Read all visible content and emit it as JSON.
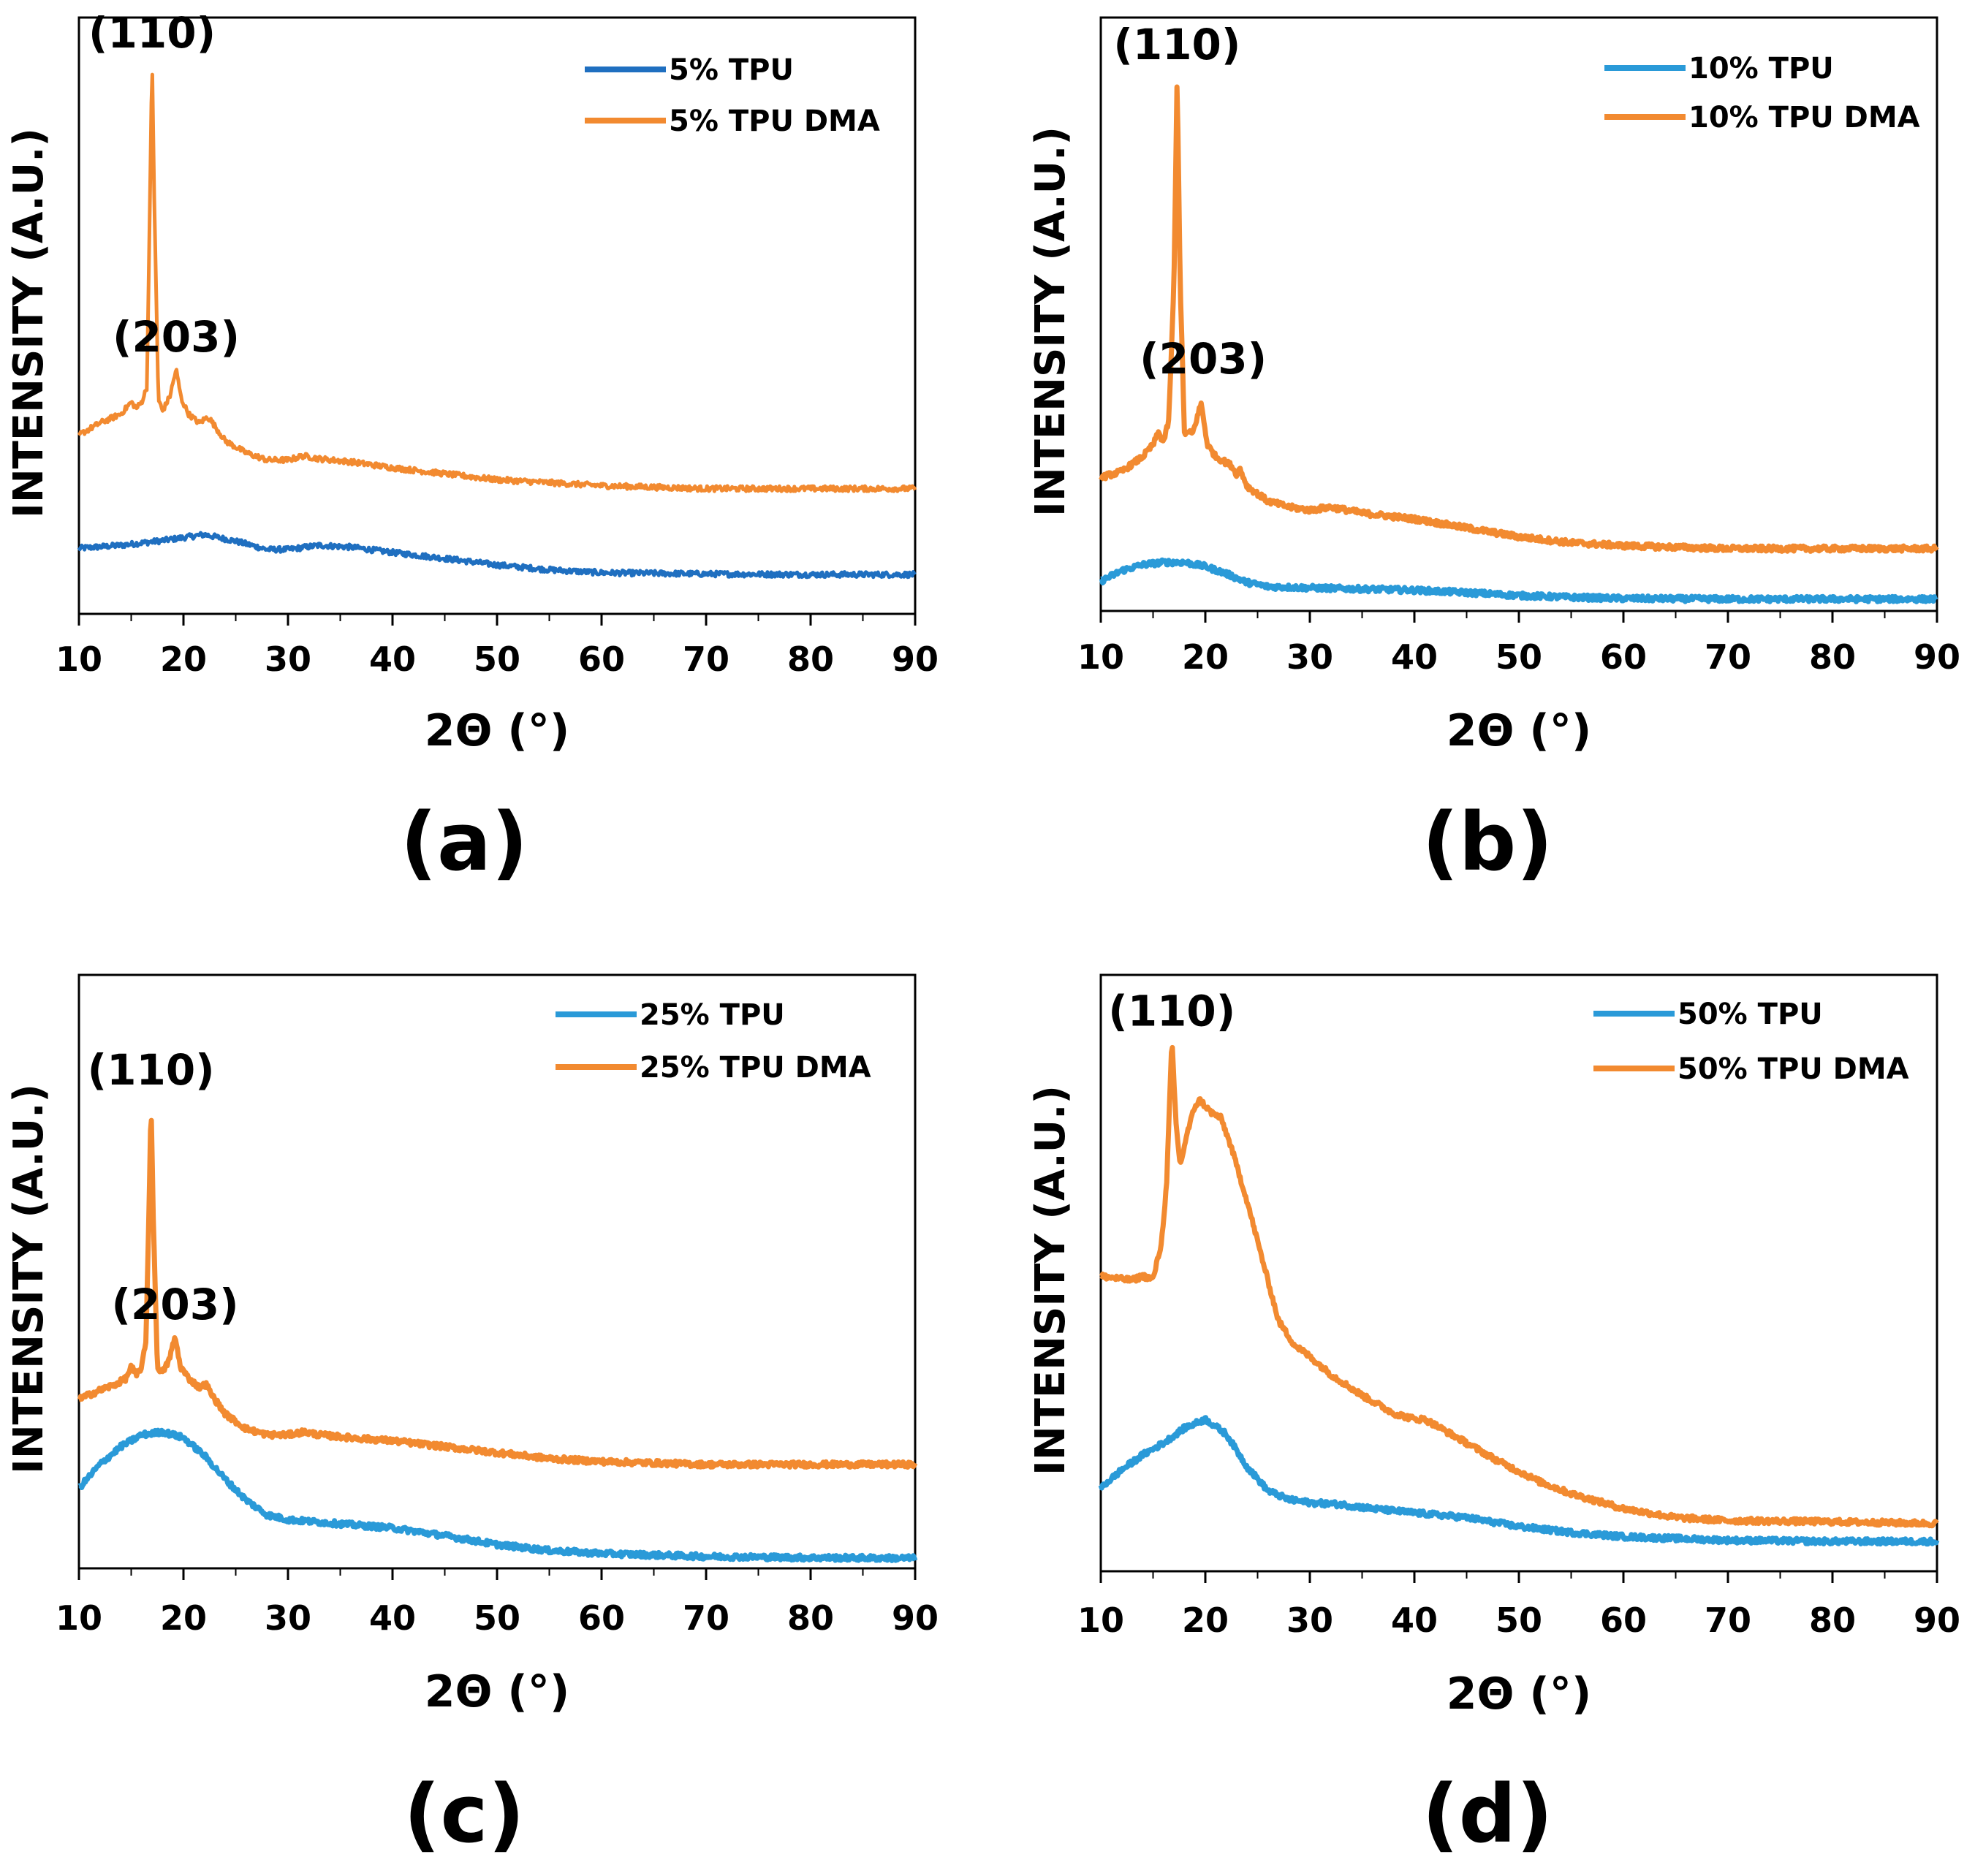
{
  "colors": {
    "blue_dark": "#1f6fc0",
    "blue_light": "#2a9ad8",
    "orange": "#f28a30",
    "axis": "#000000"
  },
  "chart_data": [
    {
      "type": "line",
      "panel_label": "(a)",
      "xlabel": "2Θ (°)",
      "ylabel": "INTENSITY (A.U.)",
      "xlim": [
        10,
        90
      ],
      "ylim": [
        0,
        100
      ],
      "x_ticks": [
        "10",
        "20",
        "30",
        "40",
        "50",
        "60",
        "70",
        "80",
        "90"
      ],
      "legend_position": "top-right",
      "series": [
        {
          "name": "5% TPU",
          "color_key": "blue_dark",
          "points": [
            [
              10,
              11
            ],
            [
              14,
              11.5
            ],
            [
              18,
              12.3
            ],
            [
              22,
              13.3
            ],
            [
              25,
              12.2
            ],
            [
              28,
              10.8
            ],
            [
              30,
              10.8
            ],
            [
              33,
              11.5
            ],
            [
              36,
              11.2
            ],
            [
              40,
              10.3
            ],
            [
              45,
              9.3
            ],
            [
              50,
              8.2
            ],
            [
              55,
              7.4
            ],
            [
              60,
              6.9
            ],
            [
              70,
              6.7
            ],
            [
              80,
              6.6
            ],
            [
              90,
              6.6
            ]
          ]
        },
        {
          "name": "5% TPU DMA",
          "color_key": "orange",
          "points": [
            [
              10,
              30
            ],
            [
              12,
              32
            ],
            [
              14,
              33.5
            ],
            [
              15,
              35.5
            ],
            [
              15.5,
              34.5
            ],
            [
              16,
              35.5
            ],
            [
              16.5,
              38
            ],
            [
              16.8,
              70
            ],
            [
              17,
              93
            ],
            [
              17.2,
              70
            ],
            [
              17.6,
              36
            ],
            [
              18,
              34
            ],
            [
              18.7,
              36.5
            ],
            [
              19.3,
              41
            ],
            [
              19.8,
              36
            ],
            [
              20.5,
              33.5
            ],
            [
              21.5,
              32
            ],
            [
              22.3,
              33
            ],
            [
              22.6,
              32.5
            ],
            [
              24,
              29
            ],
            [
              26,
              27
            ],
            [
              28,
              25.8
            ],
            [
              30,
              25.8
            ],
            [
              31.5,
              26.5
            ],
            [
              33,
              26
            ],
            [
              36,
              25.5
            ],
            [
              40,
              24.5
            ],
            [
              45,
              23.5
            ],
            [
              50,
              22.5
            ],
            [
              55,
              22
            ],
            [
              60,
              21.5
            ],
            [
              70,
              21
            ],
            [
              80,
              21
            ],
            [
              90,
              21
            ]
          ]
        }
      ],
      "annotations": [
        {
          "text": "(110)",
          "x": 17,
          "y": 95
        },
        {
          "text": "(203)",
          "x": 19.3,
          "y": 44
        }
      ]
    },
    {
      "type": "line",
      "panel_label": "(b)",
      "xlabel": "2Θ (°)",
      "ylabel": "INTENSITY (A.U.)",
      "xlim": [
        10,
        90
      ],
      "ylim": [
        0,
        100
      ],
      "x_ticks": [
        "10",
        "20",
        "30",
        "40",
        "50",
        "60",
        "70",
        "80",
        "90"
      ],
      "legend_position": "top-right",
      "series": [
        {
          "name": "10% TPU",
          "color_key": "blue_light",
          "points": [
            [
              10,
              5
            ],
            [
              12,
              6.8
            ],
            [
              14,
              7.8
            ],
            [
              16,
              8.2
            ],
            [
              18,
              8.2
            ],
            [
              20,
              7.5
            ],
            [
              22,
              6.3
            ],
            [
              24,
              4.8
            ],
            [
              26,
              4.1
            ],
            [
              30,
              3.9
            ],
            [
              35,
              3.7
            ],
            [
              40,
              3.5
            ],
            [
              45,
              3.1
            ],
            [
              50,
              2.6
            ],
            [
              55,
              2.3
            ],
            [
              60,
              2.1
            ],
            [
              70,
              2
            ],
            [
              80,
              2
            ],
            [
              90,
              2
            ]
          ]
        },
        {
          "name": "10% TPU DMA",
          "color_key": "orange",
          "points": [
            [
              10,
              22.5
            ],
            [
              12,
              23.5
            ],
            [
              14,
              26
            ],
            [
              15,
              28
            ],
            [
              15.5,
              30
            ],
            [
              16,
              28.5
            ],
            [
              16.5,
              32
            ],
            [
              17,
              55
            ],
            [
              17.3,
              90
            ],
            [
              17.6,
              55
            ],
            [
              18,
              30
            ],
            [
              18.8,
              30
            ],
            [
              19.6,
              35
            ],
            [
              20.2,
              28
            ],
            [
              21,
              26
            ],
            [
              22,
              25
            ],
            [
              22.5,
              24.5
            ],
            [
              23,
              23
            ],
            [
              23.3,
              24
            ],
            [
              24,
              21
            ],
            [
              26,
              18.5
            ],
            [
              28,
              17.5
            ],
            [
              30,
              17
            ],
            [
              32,
              17.5
            ],
            [
              35,
              16.5
            ],
            [
              40,
              15.5
            ],
            [
              45,
              14
            ],
            [
              50,
              12.5
            ],
            [
              55,
              11.5
            ],
            [
              60,
              11
            ],
            [
              70,
              10.5
            ],
            [
              80,
              10.5
            ],
            [
              90,
              10.5
            ]
          ]
        }
      ],
      "annotations": [
        {
          "text": "(110)",
          "x": 17.3,
          "y": 93
        },
        {
          "text": "(203)",
          "x": 19.8,
          "y": 40
        }
      ]
    },
    {
      "type": "line",
      "panel_label": "(c)",
      "xlabel": "2Θ (°)",
      "ylabel": "INTENSITY (A.U.)",
      "xlim": [
        10,
        90
      ],
      "ylim": [
        0,
        100
      ],
      "x_ticks": [
        "10",
        "20",
        "30",
        "40",
        "50",
        "60",
        "70",
        "80",
        "90"
      ],
      "legend_position": "top-right",
      "series": [
        {
          "name": "25% TPU",
          "color_key": "blue_light",
          "points": [
            [
              10,
              13.5
            ],
            [
              12,
              17.5
            ],
            [
              14,
              20.5
            ],
            [
              16,
              22.5
            ],
            [
              18,
              23
            ],
            [
              20,
              22
            ],
            [
              22,
              19
            ],
            [
              24,
              15
            ],
            [
              26,
              11.5
            ],
            [
              28,
              9
            ],
            [
              30,
              8.2
            ],
            [
              35,
              7.5
            ],
            [
              40,
              6.8
            ],
            [
              45,
              5.5
            ],
            [
              50,
              4
            ],
            [
              55,
              3
            ],
            [
              60,
              2.5
            ],
            [
              70,
              2
            ],
            [
              80,
              1.8
            ],
            [
              90,
              1.7
            ]
          ]
        },
        {
          "name": "25% TPU DMA",
          "color_key": "orange",
          "points": [
            [
              10,
              28.5
            ],
            [
              12,
              30
            ],
            [
              13.5,
              31
            ],
            [
              14.5,
              32
            ],
            [
              15,
              34
            ],
            [
              15.5,
              32.5
            ],
            [
              16,
              34
            ],
            [
              16.4,
              38
            ],
            [
              16.7,
              60
            ],
            [
              16.9,
              79
            ],
            [
              17.1,
              60
            ],
            [
              17.5,
              34
            ],
            [
              18,
              33
            ],
            [
              18.6,
              35
            ],
            [
              19.2,
              39
            ],
            [
              19.7,
              34
            ],
            [
              20.5,
              32
            ],
            [
              21.5,
              30.5
            ],
            [
              22.2,
              31
            ],
            [
              22.6,
              29.5
            ],
            [
              24,
              26
            ],
            [
              26,
              23.5
            ],
            [
              28,
              22.5
            ],
            [
              30,
              22.5
            ],
            [
              31.5,
              23
            ],
            [
              33,
              22.5
            ],
            [
              36,
              22
            ],
            [
              40,
              21.5
            ],
            [
              45,
              20.5
            ],
            [
              50,
              19.5
            ],
            [
              55,
              18.5
            ],
            [
              60,
              18
            ],
            [
              70,
              17.5
            ],
            [
              80,
              17.5
            ],
            [
              90,
              17.5
            ]
          ]
        }
      ],
      "annotations": [
        {
          "text": "(110)",
          "x": 16.9,
          "y": 81.5
        },
        {
          "text": "(203)",
          "x": 19.2,
          "y": 42
        }
      ]
    },
    {
      "type": "line",
      "panel_label": "(d)",
      "xlabel": "2Θ (°)",
      "ylabel": "INTENSITY (A.U.)",
      "xlim": [
        10,
        90
      ],
      "ylim": [
        0,
        100
      ],
      "x_ticks": [
        "10",
        "20",
        "30",
        "40",
        "50",
        "60",
        "70",
        "80",
        "90"
      ],
      "legend_position": "top-right",
      "series": [
        {
          "name": "50% TPU",
          "color_key": "blue_light",
          "points": [
            [
              10,
              14
            ],
            [
              12,
              17
            ],
            [
              14,
              19.5
            ],
            [
              16,
              21.5
            ],
            [
              18,
              24
            ],
            [
              20,
              25.5
            ],
            [
              22,
              23
            ],
            [
              24,
              17.5
            ],
            [
              26,
              13.5
            ],
            [
              28,
              12
            ],
            [
              30,
              11.5
            ],
            [
              33,
              11.2
            ],
            [
              36,
              10.5
            ],
            [
              40,
              9.8
            ],
            [
              45,
              9
            ],
            [
              50,
              7.5
            ],
            [
              55,
              6.5
            ],
            [
              60,
              5.8
            ],
            [
              70,
              5.2
            ],
            [
              80,
              5
            ],
            [
              90,
              5
            ]
          ]
        },
        {
          "name": "50% TPU DMA",
          "color_key": "orange",
          "points": [
            [
              10,
              49.5
            ],
            [
              12,
              49
            ],
            [
              13,
              48.8
            ],
            [
              14,
              49.5
            ],
            [
              15,
              49
            ],
            [
              15.8,
              55
            ],
            [
              16.3,
              65
            ],
            [
              16.8,
              89
            ],
            [
              17.2,
              75
            ],
            [
              17.6,
              68
            ],
            [
              18.2,
              73
            ],
            [
              19,
              78
            ],
            [
              19.5,
              79
            ],
            [
              20.5,
              77
            ],
            [
              21.5,
              76
            ],
            [
              22.5,
              71
            ],
            [
              24,
              62
            ],
            [
              25.5,
              52
            ],
            [
              27,
              42
            ],
            [
              28.5,
              38
            ],
            [
              30,
              36
            ],
            [
              32,
              33
            ],
            [
              35,
              29.5
            ],
            [
              38,
              26.5
            ],
            [
              40,
              25.5
            ],
            [
              41,
              25.5
            ],
            [
              43,
              23.5
            ],
            [
              45,
              21.5
            ],
            [
              48,
              18.5
            ],
            [
              52,
              15
            ],
            [
              55,
              13
            ],
            [
              58,
              11.5
            ],
            [
              60,
              10.5
            ],
            [
              65,
              9
            ],
            [
              70,
              8.5
            ],
            [
              80,
              8.3
            ],
            [
              90,
              8
            ]
          ]
        }
      ],
      "annotations": [
        {
          "text": "(110)",
          "x": 16.8,
          "y": 91.5
        }
      ]
    }
  ]
}
